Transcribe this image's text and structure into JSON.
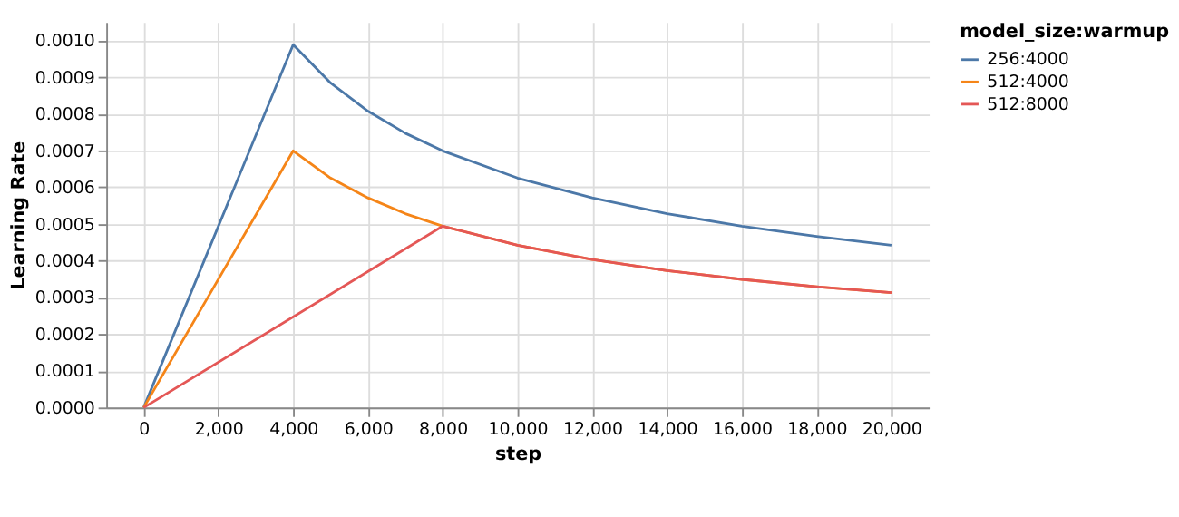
{
  "chart_data": {
    "type": "line",
    "xlabel": "step",
    "ylabel": "Learning Rate",
    "legend_title": "model_size:warmup",
    "series": [
      {
        "name": "256:4000",
        "color": "#4c78a8",
        "x": [
          0,
          4000,
          5000,
          6000,
          7000,
          8000,
          10000,
          12000,
          14000,
          16000,
          18000,
          20000
        ],
        "values": [
          0,
          0.000988,
          0.000884,
          0.000807,
          0.000747,
          0.000699,
          0.000625,
          0.000571,
          0.000528,
          0.000494,
          0.000466,
          0.000442
        ]
      },
      {
        "name": "512:4000",
        "color": "#f58518",
        "x": [
          0,
          4000,
          5000,
          6000,
          7000,
          8000,
          10000,
          12000,
          14000,
          16000,
          18000,
          20000
        ],
        "values": [
          0,
          0.000699,
          0.000625,
          0.000571,
          0.000528,
          0.000494,
          0.000442,
          0.000403,
          0.000373,
          0.000349,
          0.000329,
          0.000313
        ]
      },
      {
        "name": "512:8000",
        "color": "#e45756",
        "x": [
          0,
          8000,
          10000,
          12000,
          14000,
          16000,
          18000,
          20000
        ],
        "values": [
          0,
          0.000494,
          0.000442,
          0.000403,
          0.000373,
          0.000349,
          0.000329,
          0.000313
        ]
      }
    ],
    "xlim": [
      -1000,
      21000
    ],
    "xticks": [
      0,
      {
        "value": 2000,
        "label": "2,000"
      },
      {
        "value": 4000,
        "label": "4,000"
      },
      {
        "value": 6000,
        "label": "6,000"
      },
      {
        "value": 8000,
        "label": "8,000"
      },
      {
        "value": 10000,
        "label": "10,000"
      },
      {
        "value": 12000,
        "label": "12,000"
      },
      {
        "value": 14000,
        "label": "14,000"
      },
      {
        "value": 16000,
        "label": "16,000"
      },
      {
        "value": 18000,
        "label": "18,000"
      },
      {
        "value": 20000,
        "label": "20,000"
      }
    ],
    "ylim": [
      0,
      0.00105
    ],
    "yticks": [
      {
        "value": 0,
        "label": "0.0000"
      },
      {
        "value": 0.0001,
        "label": "0.0001"
      },
      {
        "value": 0.0002,
        "label": "0.0002"
      },
      {
        "value": 0.0003,
        "label": "0.0003"
      },
      {
        "value": 0.0004,
        "label": "0.0004"
      },
      {
        "value": 0.0005,
        "label": "0.0005"
      },
      {
        "value": 0.0006,
        "label": "0.0006"
      },
      {
        "value": 0.0007,
        "label": "0.0007"
      },
      {
        "value": 0.0008,
        "label": "0.0008"
      },
      {
        "value": 0.0009,
        "label": "0.0009"
      },
      {
        "value": 0.001,
        "label": "0.0010"
      }
    ],
    "grid": true,
    "legend": "top right",
    "marker": "none",
    "line_style": "solid"
  }
}
